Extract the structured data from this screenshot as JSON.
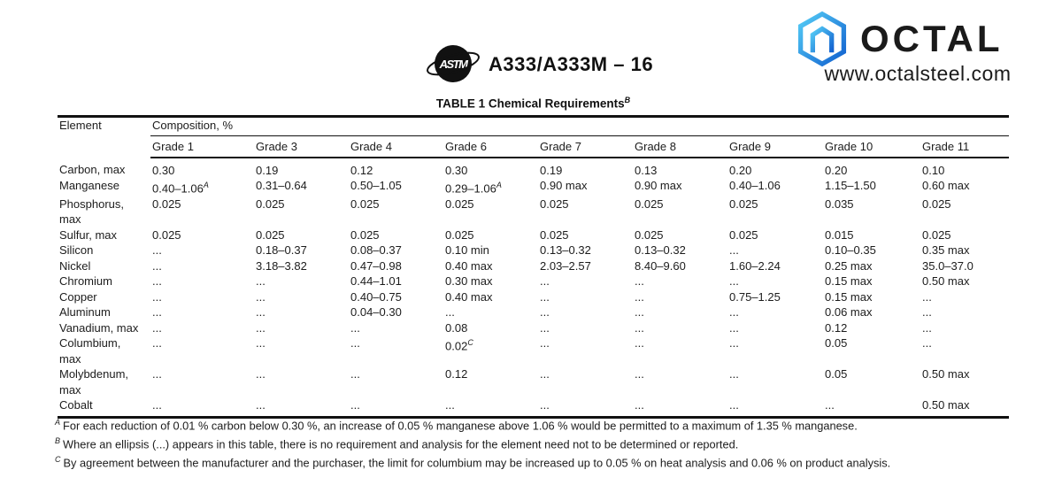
{
  "header": {
    "astm_logo_text": "ASTM",
    "spec_number": "A333/A333M – 16",
    "brand_name": "OCTAL",
    "brand_site": "www.octalsteel.com",
    "brand_blue_light": "#4fc6f5",
    "brand_blue_dark": "#1565d8"
  },
  "table": {
    "title": "TABLE 1 Chemical Requirements",
    "title_sup": "B",
    "col_element": "Element",
    "col_composition": "Composition, %",
    "grades": [
      "Grade 1",
      "Grade 3",
      "Grade 4",
      "Grade 6",
      "Grade 7",
      "Grade 8",
      "Grade 9",
      "Grade 10",
      "Grade 11"
    ],
    "rows": [
      {
        "element": "Carbon, max",
        "values": [
          "0.30",
          "0.19",
          "0.12",
          "0.30",
          "0.19",
          "0.13",
          "0.20",
          "0.20",
          "0.10"
        ]
      },
      {
        "element": "Manganese",
        "values": [
          "0.40–1.06^A",
          "0.31–0.64",
          "0.50–1.05",
          "0.29–1.06^A",
          "0.90 max",
          "0.90 max",
          "0.40–1.06",
          "1.15–1.50",
          "0.60 max"
        ]
      },
      {
        "element": "Phosphorus,\nmax",
        "values": [
          "0.025",
          "0.025",
          "0.025",
          "0.025",
          "0.025",
          "0.025",
          "0.025",
          "0.035",
          "0.025"
        ]
      },
      {
        "element": "Sulfur, max",
        "values": [
          "0.025",
          "0.025",
          "0.025",
          "0.025",
          "0.025",
          "0.025",
          "0.025",
          "0.015",
          "0.025"
        ]
      },
      {
        "element": "Silicon",
        "values": [
          "...",
          "0.18–0.37",
          "0.08–0.37",
          "0.10 min",
          "0.13–0.32",
          "0.13–0.32",
          "...",
          "0.10–0.35",
          "0.35 max"
        ]
      },
      {
        "element": "Nickel",
        "values": [
          "...",
          "3.18–3.82",
          "0.47–0.98",
          "0.40 max",
          "2.03–2.57",
          "8.40–9.60",
          "1.60–2.24",
          "0.25 max",
          "35.0–37.0"
        ]
      },
      {
        "element": "Chromium",
        "values": [
          "...",
          "...",
          "0.44–1.01",
          "0.30 max",
          "...",
          "...",
          "...",
          "0.15 max",
          "0.50 max"
        ]
      },
      {
        "element": "Copper",
        "values": [
          "...",
          "...",
          "0.40–0.75",
          "0.40 max",
          "...",
          "...",
          "0.75–1.25",
          "0.15 max",
          "..."
        ]
      },
      {
        "element": "Aluminum",
        "values": [
          "...",
          "...",
          "0.04–0.30",
          "...",
          "...",
          "...",
          "...",
          "0.06 max",
          "..."
        ]
      },
      {
        "element": "Vanadium, max",
        "values": [
          "...",
          "...",
          "...",
          "0.08",
          "...",
          "...",
          "...",
          "0.12",
          "..."
        ]
      },
      {
        "element": "Columbium,\nmax",
        "values": [
          "...",
          "...",
          "...",
          "0.02^C",
          "...",
          "...",
          "...",
          "0.05",
          "..."
        ]
      },
      {
        "element": "Molybdenum,\nmax",
        "values": [
          "...",
          "...",
          "...",
          "0.12",
          "...",
          "...",
          "...",
          "0.05",
          "0.50 max"
        ]
      },
      {
        "element": "Cobalt",
        "values": [
          "...",
          "...",
          "...",
          "...",
          "...",
          "...",
          "...",
          "...",
          "0.50 max"
        ]
      }
    ]
  },
  "footnotes": [
    {
      "sup": "A",
      "text": "For each reduction of 0.01 % carbon below 0.30 %, an increase of 0.05 % manganese above 1.06 % would be permitted to a maximum of 1.35 % manganese."
    },
    {
      "sup": "B",
      "text": "Where an ellipsis (...) appears in this table, there is no requirement and analysis for the element need not to be determined or reported."
    },
    {
      "sup": "C",
      "text": "By agreement between the manufacturer and the purchaser, the limit for columbium may be increased up to 0.05 % on heat analysis and 0.06 % on product analysis."
    }
  ]
}
